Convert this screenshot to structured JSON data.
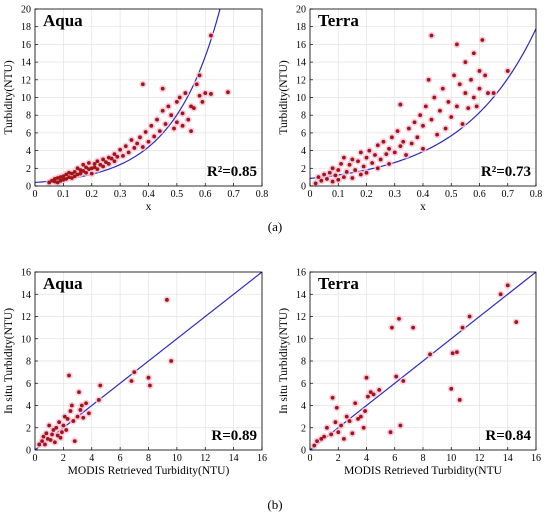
{
  "captions": {
    "top": "(a)",
    "bottom": "(b)"
  },
  "chart_data": [
    {
      "type": "scatter",
      "title": "Aqua",
      "stat_label": "R²=0.85",
      "xlabel": "x",
      "ylabel": "Turbidity(NTU)",
      "xlim": [
        0,
        0.8
      ],
      "ylim": [
        0,
        20
      ],
      "xticks": [
        0,
        0.1,
        0.2,
        0.3,
        0.4,
        0.5,
        0.6,
        0.7,
        0.8
      ],
      "yticks": [
        0,
        2,
        4,
        6,
        8,
        10,
        12,
        14,
        16,
        18,
        20
      ],
      "grid": true,
      "fit": {
        "model": "exponential",
        "a": 0.4,
        "b": 6.0
      },
      "point_color": "#a31515",
      "halo_color": "#f5c6dc",
      "fit_color": "#2b2bc4",
      "points": [
        [
          0.05,
          0.4
        ],
        [
          0.06,
          0.6
        ],
        [
          0.07,
          0.5
        ],
        [
          0.07,
          0.8
        ],
        [
          0.08,
          0.4
        ],
        [
          0.08,
          0.9
        ],
        [
          0.09,
          1.0
        ],
        [
          0.09,
          0.6
        ],
        [
          0.1,
          0.7
        ],
        [
          0.1,
          1.1
        ],
        [
          0.11,
          0.8
        ],
        [
          0.11,
          1.3
        ],
        [
          0.12,
          1.0
        ],
        [
          0.12,
          1.5
        ],
        [
          0.13,
          0.9
        ],
        [
          0.13,
          1.4
        ],
        [
          0.14,
          1.6
        ],
        [
          0.14,
          1.1
        ],
        [
          0.15,
          1.3
        ],
        [
          0.15,
          2.0
        ],
        [
          0.16,
          1.4
        ],
        [
          0.16,
          1.8
        ],
        [
          0.17,
          1.7
        ],
        [
          0.17,
          2.4
        ],
        [
          0.18,
          1.5
        ],
        [
          0.18,
          2.1
        ],
        [
          0.19,
          1.9
        ],
        [
          0.19,
          2.6
        ],
        [
          0.2,
          2.0
        ],
        [
          0.2,
          1.4
        ],
        [
          0.21,
          2.5
        ],
        [
          0.21,
          2.1
        ],
        [
          0.22,
          2.8
        ],
        [
          0.22,
          1.9
        ],
        [
          0.23,
          2.4
        ],
        [
          0.24,
          3.0
        ],
        [
          0.24,
          2.2
        ],
        [
          0.25,
          2.7
        ],
        [
          0.26,
          3.2
        ],
        [
          0.26,
          2.5
        ],
        [
          0.27,
          3.1
        ],
        [
          0.28,
          3.6
        ],
        [
          0.28,
          2.8
        ],
        [
          0.29,
          3.3
        ],
        [
          0.3,
          4.1
        ],
        [
          0.31,
          3.4
        ],
        [
          0.32,
          4.5
        ],
        [
          0.33,
          3.8
        ],
        [
          0.34,
          5.2
        ],
        [
          0.35,
          4.3
        ],
        [
          0.36,
          4.8
        ],
        [
          0.37,
          5.5
        ],
        [
          0.38,
          4.4
        ],
        [
          0.38,
          11.5
        ],
        [
          0.39,
          6.1
        ],
        [
          0.4,
          5.0
        ],
        [
          0.41,
          6.8
        ],
        [
          0.42,
          5.6
        ],
        [
          0.43,
          7.5
        ],
        [
          0.44,
          6.2
        ],
        [
          0.45,
          8.5
        ],
        [
          0.45,
          11.0
        ],
        [
          0.46,
          7.0
        ],
        [
          0.47,
          9.0
        ],
        [
          0.48,
          8.0
        ],
        [
          0.49,
          6.5
        ],
        [
          0.5,
          9.5
        ],
        [
          0.5,
          7.2
        ],
        [
          0.51,
          10.0
        ],
        [
          0.52,
          8.2
        ],
        [
          0.52,
          6.8
        ],
        [
          0.53,
          10.5
        ],
        [
          0.54,
          7.5
        ],
        [
          0.55,
          6.2
        ],
        [
          0.55,
          9.0
        ],
        [
          0.56,
          8.8
        ],
        [
          0.57,
          11.5
        ],
        [
          0.58,
          10.2
        ],
        [
          0.58,
          12.5
        ],
        [
          0.59,
          9.5
        ],
        [
          0.6,
          10.5
        ],
        [
          0.62,
          17.0
        ],
        [
          0.62,
          10.4
        ],
        [
          0.68,
          10.6
        ]
      ]
    },
    {
      "type": "scatter",
      "title": "Terra",
      "stat_label": "R²=0.73",
      "xlabel": "x",
      "ylabel": "Turbidity(NTU)",
      "xlim": [
        0,
        0.8
      ],
      "ylim": [
        0,
        20
      ],
      "xticks": [
        0,
        0.1,
        0.2,
        0.3,
        0.4,
        0.5,
        0.6,
        0.7,
        0.8
      ],
      "yticks": [
        0,
        2,
        4,
        6,
        8,
        10,
        12,
        14,
        16,
        18,
        20
      ],
      "grid": true,
      "fit": {
        "model": "exponential",
        "a": 0.85,
        "b": 3.8
      },
      "point_color": "#a31515",
      "halo_color": "#f5c6dc",
      "fit_color": "#2b2bc4",
      "points": [
        [
          0.02,
          0.3
        ],
        [
          0.03,
          1.0
        ],
        [
          0.04,
          0.6
        ],
        [
          0.05,
          1.3
        ],
        [
          0.06,
          0.8
        ],
        [
          0.07,
          1.5
        ],
        [
          0.08,
          0.5
        ],
        [
          0.08,
          2.0
        ],
        [
          0.09,
          1.2
        ],
        [
          0.1,
          0.7
        ],
        [
          0.1,
          1.8
        ],
        [
          0.11,
          2.5
        ],
        [
          0.12,
          1.0
        ],
        [
          0.12,
          3.2
        ],
        [
          0.13,
          1.6
        ],
        [
          0.14,
          2.4
        ],
        [
          0.15,
          0.9
        ],
        [
          0.15,
          3.0
        ],
        [
          0.16,
          1.8
        ],
        [
          0.17,
          2.8
        ],
        [
          0.18,
          1.3
        ],
        [
          0.18,
          3.8
        ],
        [
          0.19,
          2.2
        ],
        [
          0.2,
          3.2
        ],
        [
          0.2,
          1.5
        ],
        [
          0.21,
          4.0
        ],
        [
          0.22,
          2.6
        ],
        [
          0.23,
          3.5
        ],
        [
          0.24,
          2.0
        ],
        [
          0.24,
          4.6
        ],
        [
          0.25,
          3.0
        ],
        [
          0.26,
          5.0
        ],
        [
          0.27,
          3.6
        ],
        [
          0.28,
          4.2
        ],
        [
          0.28,
          2.5
        ],
        [
          0.29,
          5.5
        ],
        [
          0.3,
          3.8
        ],
        [
          0.31,
          6.2
        ],
        [
          0.32,
          4.5
        ],
        [
          0.32,
          9.2
        ],
        [
          0.33,
          5.0
        ],
        [
          0.34,
          3.5
        ],
        [
          0.35,
          6.5
        ],
        [
          0.36,
          4.8
        ],
        [
          0.37,
          7.2
        ],
        [
          0.38,
          5.5
        ],
        [
          0.39,
          8.0
        ],
        [
          0.4,
          4.2
        ],
        [
          0.4,
          6.8
        ],
        [
          0.41,
          9.0
        ],
        [
          0.42,
          12.0
        ],
        [
          0.43,
          17.0
        ],
        [
          0.43,
          7.5
        ],
        [
          0.44,
          10.0
        ],
        [
          0.45,
          5.8
        ],
        [
          0.46,
          8.5
        ],
        [
          0.47,
          11.0
        ],
        [
          0.48,
          6.5
        ],
        [
          0.49,
          9.5
        ],
        [
          0.5,
          7.8
        ],
        [
          0.51,
          12.5
        ],
        [
          0.52,
          16.0
        ],
        [
          0.52,
          9.0
        ],
        [
          0.53,
          11.5
        ],
        [
          0.54,
          7.0
        ],
        [
          0.55,
          10.5
        ],
        [
          0.55,
          14.0
        ],
        [
          0.56,
          8.8
        ],
        [
          0.57,
          12.0
        ],
        [
          0.58,
          15.0
        ],
        [
          0.58,
          10.0
        ],
        [
          0.59,
          9.0
        ],
        [
          0.6,
          13.0
        ],
        [
          0.6,
          11.0
        ],
        [
          0.61,
          16.5
        ],
        [
          0.62,
          12.5
        ],
        [
          0.63,
          10.5
        ],
        [
          0.65,
          10.5
        ],
        [
          0.7,
          13.0
        ]
      ]
    },
    {
      "type": "scatter",
      "title": "Aqua",
      "stat_label": "R=0.89",
      "xlabel": "MODIS Retrieved Turbidity(NTU)",
      "ylabel": "In situ Turbidity(NTU)",
      "xlim": [
        0,
        16
      ],
      "ylim": [
        0,
        16
      ],
      "xticks": [
        0,
        2,
        4,
        6,
        8,
        10,
        12,
        14,
        16
      ],
      "yticks": [
        0,
        2,
        4,
        6,
        8,
        10,
        12,
        14,
        16
      ],
      "grid": true,
      "fit": {
        "model": "identity"
      },
      "point_color": "#a31515",
      "halo_color": "#f5c6dc",
      "fit_color": "#2b2bc4",
      "points": [
        [
          0.3,
          0.5
        ],
        [
          0.5,
          0.8
        ],
        [
          0.6,
          1.2
        ],
        [
          0.7,
          0.5
        ],
        [
          0.8,
          1.5
        ],
        [
          0.9,
          1.0
        ],
        [
          1.0,
          2.2
        ],
        [
          1.1,
          0.9
        ],
        [
          1.2,
          1.4
        ],
        [
          1.3,
          1.8
        ],
        [
          1.4,
          0.7
        ],
        [
          1.5,
          2.0
        ],
        [
          1.6,
          1.3
        ],
        [
          1.7,
          2.5
        ],
        [
          1.8,
          1.1
        ],
        [
          1.9,
          1.6
        ],
        [
          2.0,
          2.2
        ],
        [
          2.1,
          3.0
        ],
        [
          2.2,
          1.8
        ],
        [
          2.3,
          2.8
        ],
        [
          2.4,
          6.7
        ],
        [
          2.5,
          3.5
        ],
        [
          2.6,
          4.0
        ],
        [
          2.7,
          2.6
        ],
        [
          2.8,
          0.8
        ],
        [
          3.0,
          3.0
        ],
        [
          3.1,
          5.2
        ],
        [
          3.2,
          3.6
        ],
        [
          3.3,
          4.0
        ],
        [
          3.4,
          2.9
        ],
        [
          3.6,
          4.2
        ],
        [
          3.8,
          3.3
        ],
        [
          4.6,
          5.8
        ],
        [
          4.5,
          4.5
        ],
        [
          6.8,
          6.2
        ],
        [
          7.0,
          7.0
        ],
        [
          8.0,
          6.5
        ],
        [
          8.1,
          5.8
        ],
        [
          9.3,
          13.5
        ],
        [
          9.6,
          8.0
        ]
      ]
    },
    {
      "type": "scatter",
      "title": "Terra",
      "stat_label": "R=0.84",
      "xlabel": "MODIS Retrieved Turbidity(NTU",
      "ylabel": "In situ Turbidity(NTU)",
      "xlim": [
        0,
        16
      ],
      "ylim": [
        0,
        16
      ],
      "xticks": [
        0,
        2,
        4,
        6,
        8,
        10,
        12,
        14,
        16
      ],
      "yticks": [
        0,
        2,
        4,
        6,
        8,
        10,
        12,
        14,
        16
      ],
      "grid": true,
      "fit": {
        "model": "identity"
      },
      "point_color": "#a31515",
      "halo_color": "#f5c6dc",
      "fit_color": "#2b2bc4",
      "points": [
        [
          0.3,
          0.4
        ],
        [
          0.5,
          0.8
        ],
        [
          0.8,
          1.0
        ],
        [
          1.0,
          1.2
        ],
        [
          1.2,
          2.0
        ],
        [
          1.5,
          1.4
        ],
        [
          1.6,
          4.7
        ],
        [
          1.8,
          2.5
        ],
        [
          1.9,
          3.8
        ],
        [
          2.0,
          1.6
        ],
        [
          2.2,
          2.2
        ],
        [
          2.4,
          1.0
        ],
        [
          2.6,
          3.0
        ],
        [
          2.8,
          2.6
        ],
        [
          3.0,
          1.5
        ],
        [
          3.2,
          4.2
        ],
        [
          3.4,
          2.8
        ],
        [
          3.6,
          3.0
        ],
        [
          3.8,
          2.0
        ],
        [
          3.9,
          3.5
        ],
        [
          4.0,
          6.5
        ],
        [
          4.1,
          4.8
        ],
        [
          4.3,
          5.2
        ],
        [
          4.5,
          5.0
        ],
        [
          4.9,
          5.4
        ],
        [
          5.8,
          11.0
        ],
        [
          6.1,
          6.6
        ],
        [
          6.3,
          11.8
        ],
        [
          6.6,
          6.2
        ],
        [
          7.3,
          11.0
        ],
        [
          8.5,
          8.6
        ],
        [
          10.0,
          5.5
        ],
        [
          10.1,
          8.7
        ],
        [
          10.4,
          8.8
        ],
        [
          10.6,
          4.5
        ],
        [
          10.8,
          11.0
        ],
        [
          11.3,
          12.0
        ],
        [
          13.5,
          14.0
        ],
        [
          14.0,
          14.8
        ],
        [
          14.6,
          11.5
        ],
        [
          5.7,
          1.6
        ],
        [
          6.4,
          2.2
        ]
      ]
    }
  ]
}
